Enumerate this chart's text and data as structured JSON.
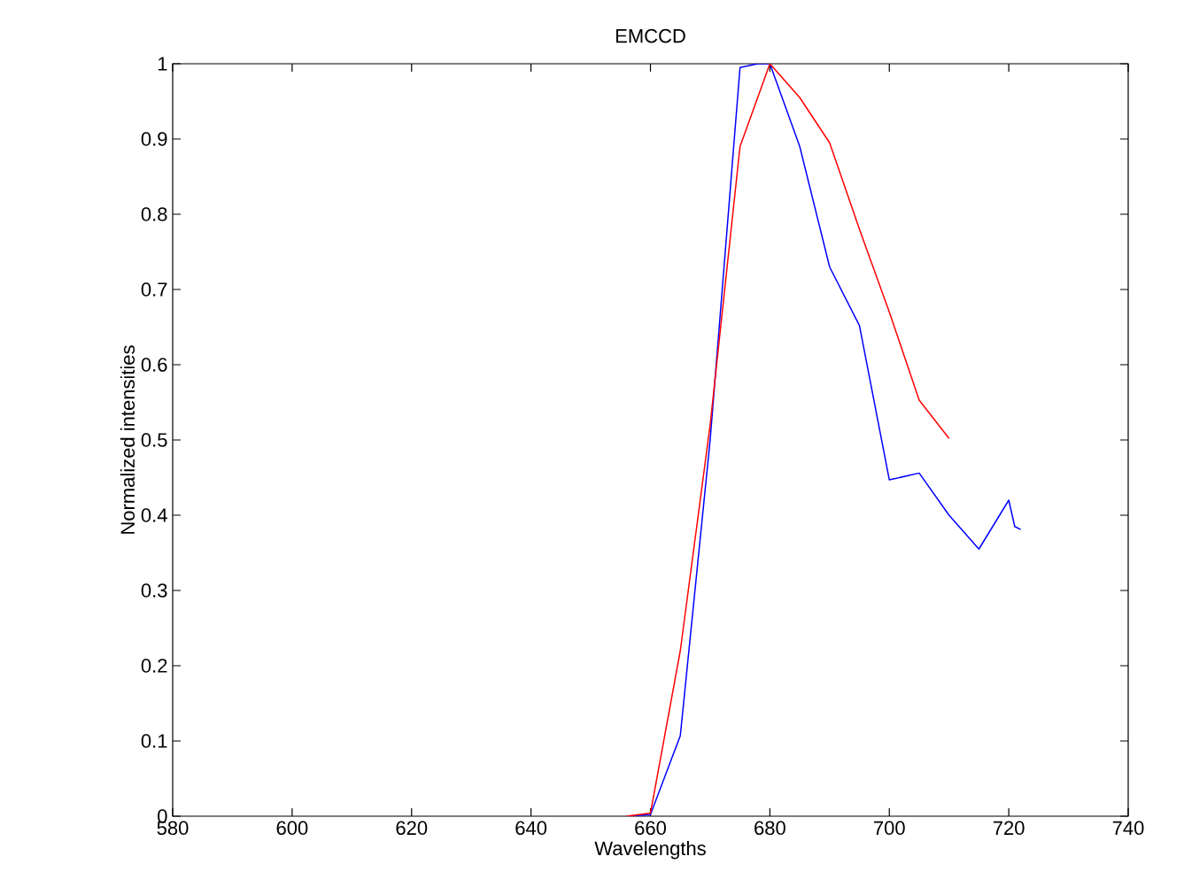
{
  "chart_data": {
    "type": "line",
    "title": "EMCCD",
    "xlabel": "Wavelengths",
    "ylabel": "Normalized intensities",
    "xlim": [
      580,
      740
    ],
    "xticks": [
      580,
      600,
      620,
      640,
      660,
      680,
      700,
      720,
      740
    ],
    "ylim": [
      0,
      1
    ],
    "yticks": [
      0,
      0.1,
      0.2,
      0.3,
      0.4,
      0.5,
      0.6,
      0.7,
      0.8,
      0.9,
      1
    ],
    "marker": "none",
    "line_style": "solid",
    "series": [
      {
        "color": "#0000ff",
        "x": [
          656,
          660,
          665,
          670,
          675,
          678,
          680,
          685,
          690,
          695,
          700,
          705,
          710,
          715,
          720,
          721,
          722
        ],
        "values": [
          0,
          0.002,
          0.107,
          0.5,
          0.995,
          1.0,
          1.0,
          0.89,
          0.73,
          0.652,
          0.447,
          0.456,
          0.4,
          0.355,
          0.42,
          0.385,
          0.381
        ]
      },
      {
        "color": "#ff0000",
        "x": [
          656,
          660,
          665,
          670,
          675,
          680,
          685,
          690,
          695,
          700,
          705,
          710
        ],
        "values": [
          0,
          0.004,
          0.22,
          0.52,
          0.89,
          1.0,
          0.955,
          0.895,
          0.78,
          0.67,
          0.553,
          0.502
        ]
      }
    ]
  }
}
